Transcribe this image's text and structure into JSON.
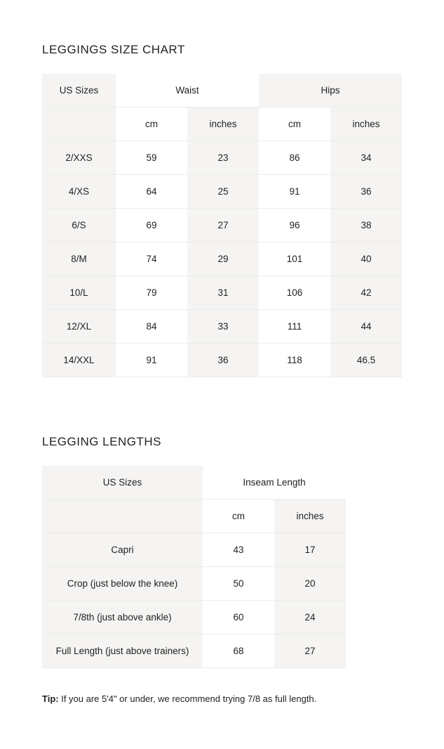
{
  "size_chart": {
    "title": "LEGGINGS SIZE CHART",
    "header": {
      "us_sizes": "US Sizes",
      "waist": "Waist",
      "hips": "Hips"
    },
    "units": [
      "cm",
      "inches",
      "cm",
      "inches"
    ],
    "rows": [
      [
        "2/XXS",
        "59",
        "23",
        "86",
        "34"
      ],
      [
        "4/XS",
        "64",
        "25",
        "91",
        "36"
      ],
      [
        "6/S",
        "69",
        "27",
        "96",
        "38"
      ],
      [
        "8/M",
        "74",
        "29",
        "101",
        "40"
      ],
      [
        "10/L",
        "79",
        "31",
        "106",
        "42"
      ],
      [
        "12/XL",
        "84",
        "33",
        "111",
        "44"
      ],
      [
        "14/XXL",
        "91",
        "36",
        "118",
        "46.5"
      ]
    ]
  },
  "lengths": {
    "title": "LEGGING LENGTHS",
    "header": {
      "us_sizes": "US Sizes",
      "inseam": "Inseam Length"
    },
    "units": [
      "cm",
      "inches"
    ],
    "rows": [
      [
        "Capri",
        "43",
        "17"
      ],
      [
        "Crop (just below the knee)",
        "50",
        "20"
      ],
      [
        "7/8th (just above ankle)",
        "60",
        "24"
      ],
      [
        "Full Length (just above trainers)",
        "68",
        "27"
      ]
    ]
  },
  "tip": {
    "label": "Tip:",
    "text": " If you are 5'4\" or under, we recommend trying 7/8 as full length."
  },
  "colors": {
    "shade": "#f5f4f2",
    "text": "#222222"
  }
}
